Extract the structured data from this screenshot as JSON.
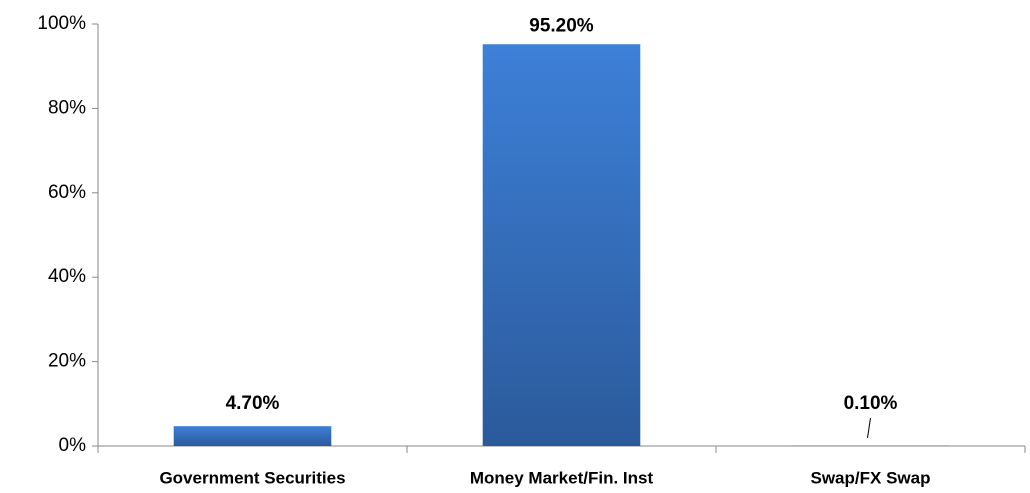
{
  "chart_data": {
    "type": "bar",
    "categories": [
      "Government Securities",
      "Money Market/Fin. Inst",
      "Swap/FX Swap"
    ],
    "values": [
      4.7,
      95.2,
      0.1
    ],
    "value_labels": [
      "4.70%",
      "95.20%",
      "0.10%"
    ],
    "color": "#3a78cc",
    "ylim": [
      0,
      100
    ],
    "yticks": [
      {
        "value": 0,
        "label": "0%"
      },
      {
        "value": 20,
        "label": "20%"
      },
      {
        "value": 40,
        "label": "40%"
      },
      {
        "value": 60,
        "label": "60%"
      },
      {
        "value": 80,
        "label": "80%"
      },
      {
        "value": 100,
        "label": "100%"
      }
    ],
    "grid": false
  }
}
